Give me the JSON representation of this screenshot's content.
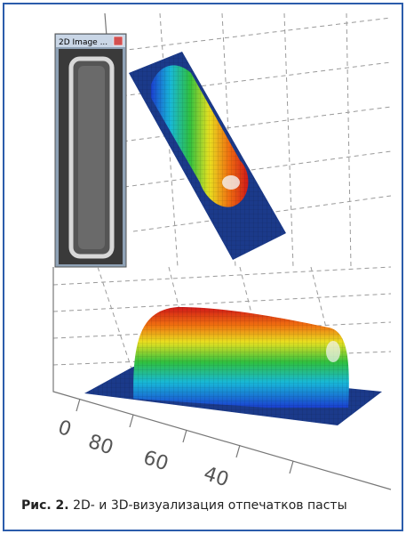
{
  "figure": {
    "window_title": "2D Image ...",
    "axis_labels": [
      "0",
      "80",
      "60",
      "40"
    ],
    "caption": {
      "label": "Рис. 2.",
      "text": "2D- и 3D-визуализация отпечатков пасты"
    }
  }
}
